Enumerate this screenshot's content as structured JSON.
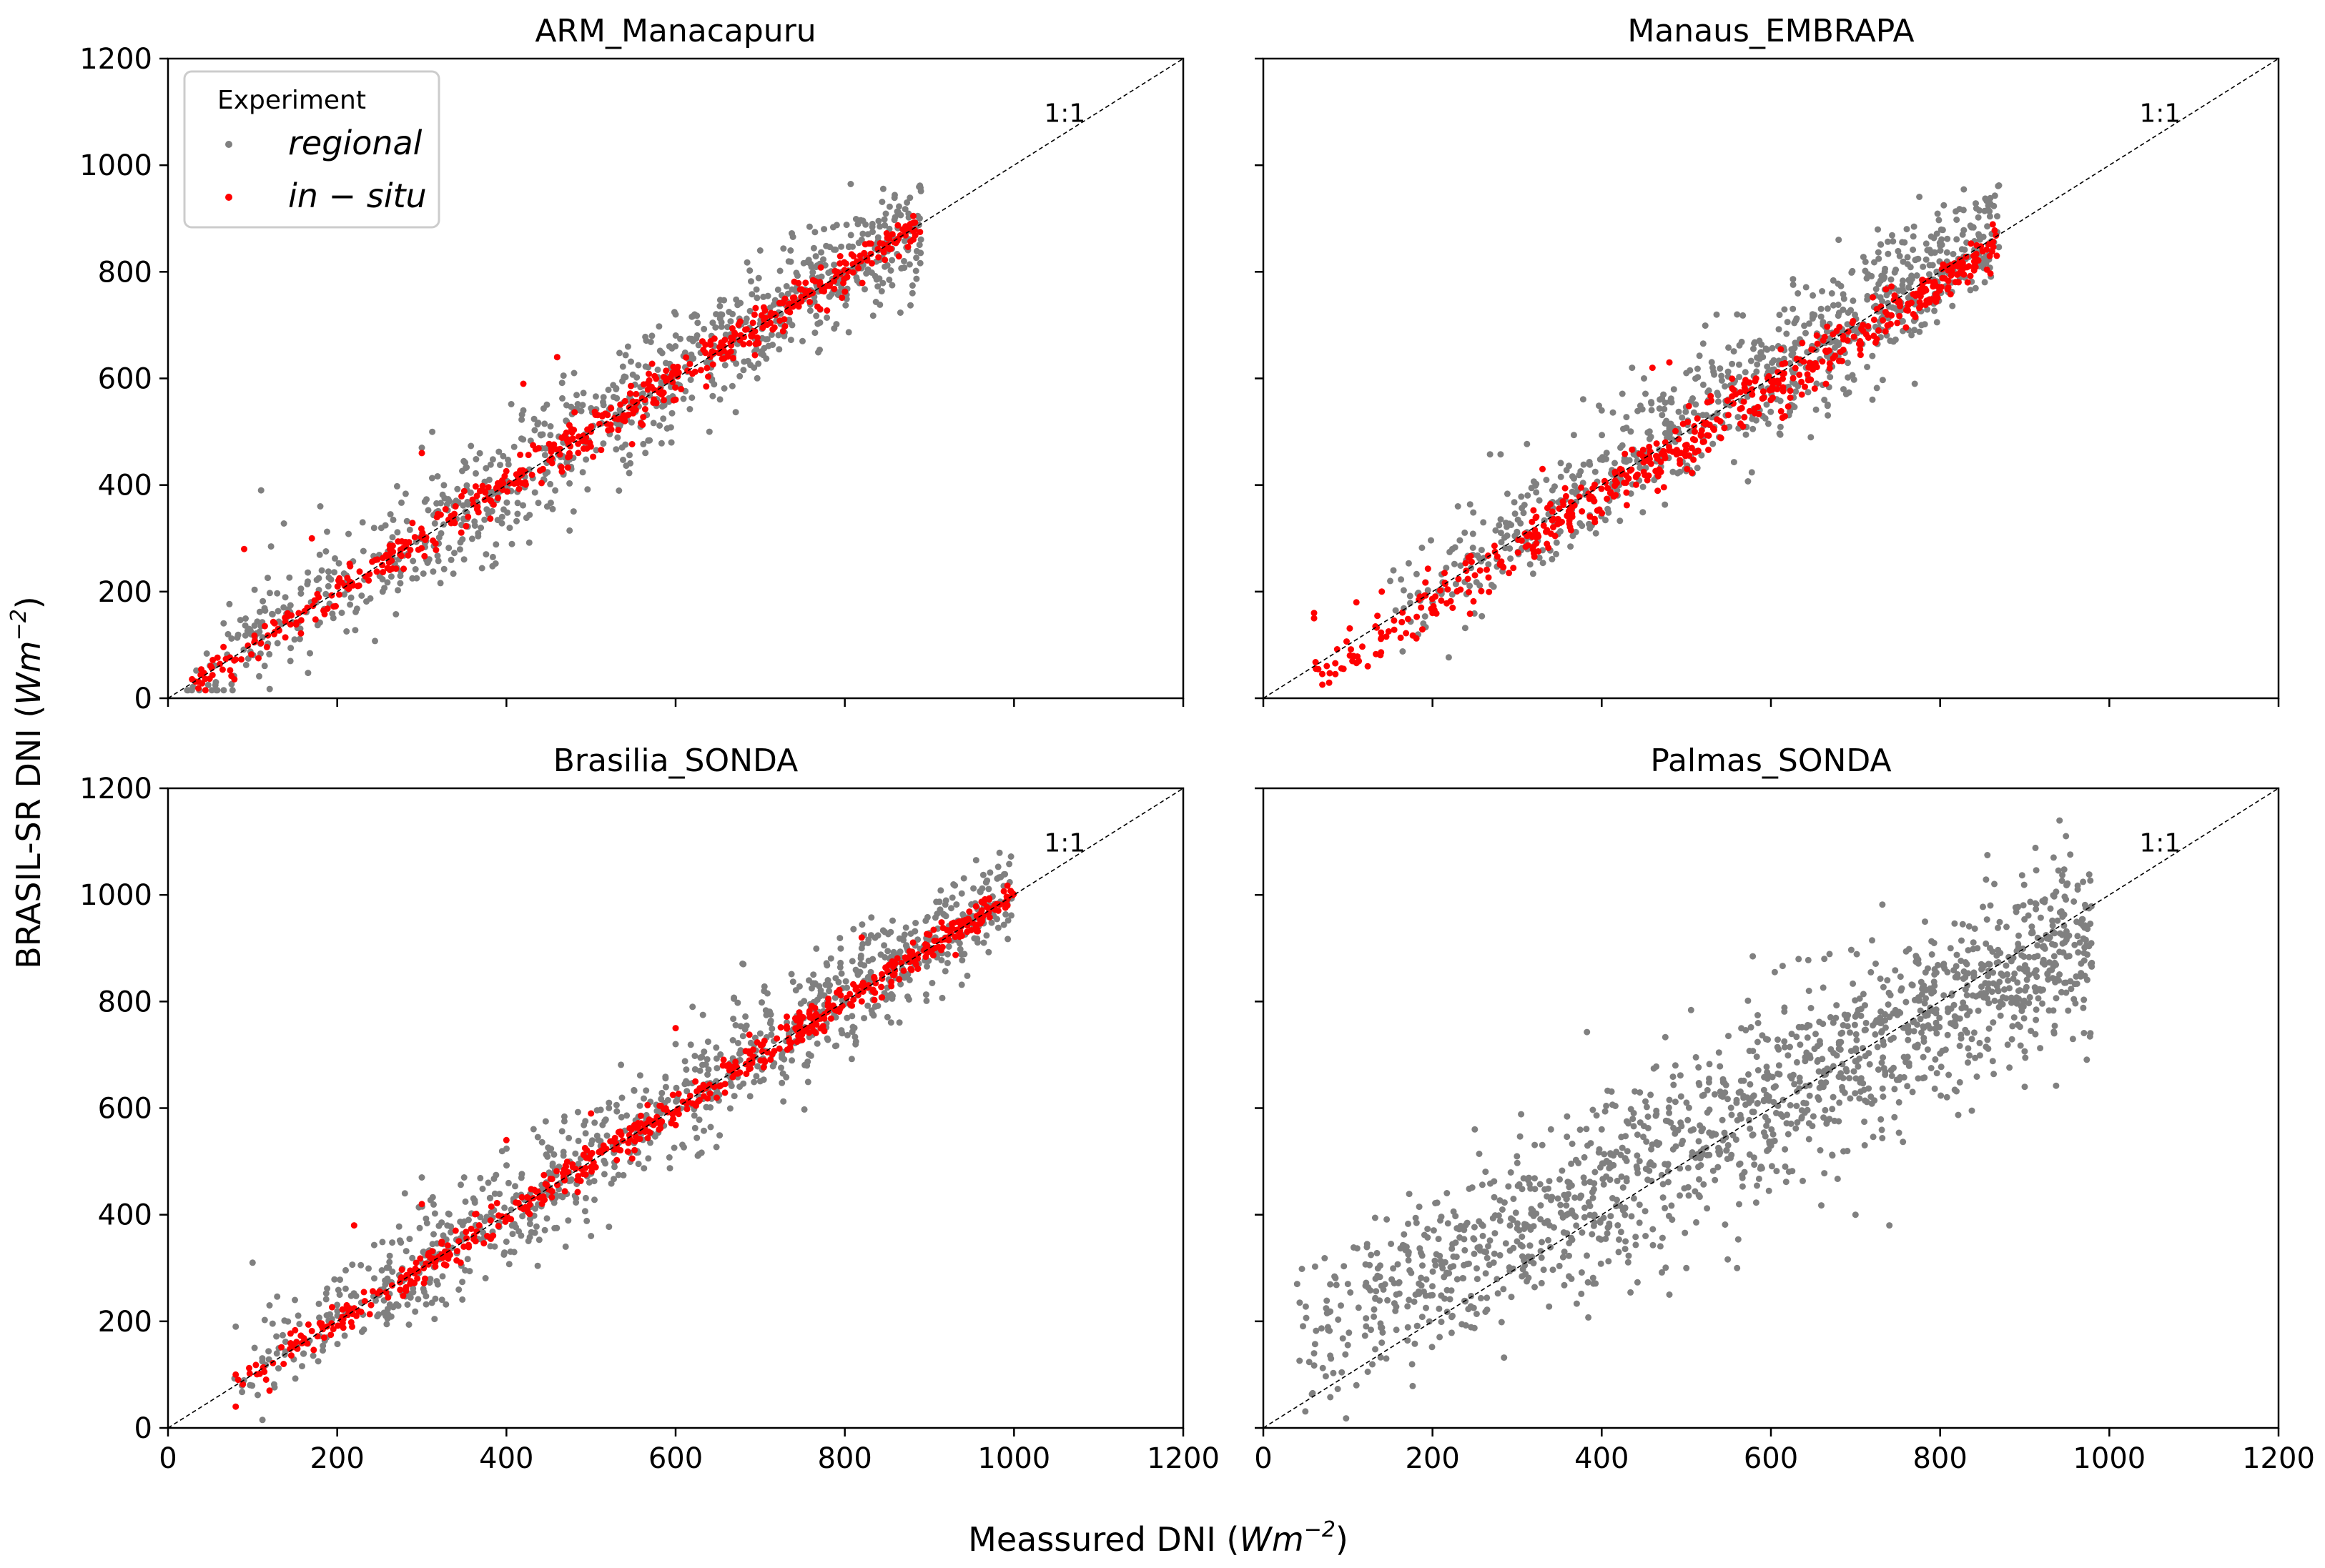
{
  "figure": {
    "xlabel": "Meassured DNI (",
    "xlabel_unit": "Wm",
    "xlabel_exp": "−2",
    "xlabel_close": ")",
    "ylabel": "BRASIL-SR DNI (",
    "ylabel_unit": "Wm",
    "ylabel_exp": "−2",
    "ylabel_close": ")",
    "legend": {
      "title": "Experiment",
      "entries": [
        {
          "label": "regional",
          "color": "#808080"
        },
        {
          "label": "in − situ",
          "color": "#ff0000"
        }
      ]
    },
    "colors": {
      "regional": "#808080",
      "insitu": "#ff0000",
      "reference_line": "#000000"
    }
  },
  "chart_data": [
    {
      "type": "scatter",
      "title": "ARM_Manacapuru",
      "annotation": "1:1",
      "xlim": [
        0,
        1200
      ],
      "ylim": [
        0,
        1200
      ],
      "xticks": [
        "0",
        "200",
        "400",
        "600",
        "800",
        "1000",
        "1200"
      ],
      "yticks": [
        "0",
        "200",
        "400",
        "600",
        "800",
        "1000",
        "1200"
      ],
      "show_xticklabels": false,
      "show_yticklabels": true,
      "series": [
        {
          "name": "regional",
          "x_range": [
            20,
            890
          ],
          "slope": 1.0,
          "intercept": 5,
          "spread": 55,
          "n": 900,
          "seed": 11,
          "extra": [
            [
              110,
              390
            ],
            [
              180,
              360
            ],
            [
              230,
              330
            ],
            [
              300,
              470
            ],
            [
              420,
              540
            ],
            [
              460,
              640
            ],
            [
              480,
              610
            ],
            [
              560,
              570
            ],
            [
              600,
              720
            ],
            [
              640,
              500
            ],
            [
              700,
              840
            ],
            [
              750,
              670
            ],
            [
              820,
              860
            ],
            [
              870,
              820
            ],
            [
              880,
              760
            ]
          ]
        },
        {
          "name": "in − situ",
          "x_range": [
            20,
            890
          ],
          "slope": 1.0,
          "intercept": 0,
          "spread": 18,
          "n": 550,
          "seed": 12,
          "extra": [
            [
              90,
              280
            ],
            [
              170,
              300
            ],
            [
              300,
              460
            ],
            [
              420,
              590
            ],
            [
              460,
              640
            ],
            [
              540,
              520
            ],
            [
              600,
              560
            ]
          ]
        }
      ]
    },
    {
      "type": "scatter",
      "title": "Manaus_EMBRAPA",
      "annotation": "1:1",
      "xlim": [
        0,
        1200
      ],
      "ylim": [
        0,
        1200
      ],
      "xticks": [
        "0",
        "200",
        "400",
        "600",
        "800",
        "1000",
        "1200"
      ],
      "yticks": [
        "0",
        "200",
        "400",
        "600",
        "800",
        "1000",
        "1200"
      ],
      "show_xticklabels": false,
      "show_yticklabels": false,
      "series": [
        {
          "name": "regional",
          "x_range": [
            150,
            870
          ],
          "slope": 1.0,
          "intercept": 15,
          "spread": 55,
          "n": 850,
          "seed": 21,
          "extra": [
            [
              150,
              220
            ],
            [
              200,
              180
            ],
            [
              230,
              360
            ],
            [
              260,
              330
            ],
            [
              400,
              540
            ],
            [
              450,
              600
            ],
            [
              500,
              610
            ],
            [
              560,
              720
            ],
            [
              680,
              860
            ],
            [
              720,
              560
            ],
            [
              770,
              590
            ]
          ]
        },
        {
          "name": "in − situ",
          "x_range": [
            60,
            870
          ],
          "slope": 1.0,
          "intercept": -20,
          "spread": 22,
          "n": 550,
          "seed": 22,
          "extra": [
            [
              60,
              160
            ],
            [
              60,
              150
            ],
            [
              110,
              180
            ],
            [
              140,
              200
            ],
            [
              200,
              160
            ],
            [
              330,
              430
            ],
            [
              460,
              620
            ],
            [
              480,
              630
            ],
            [
              510,
              500
            ]
          ]
        }
      ]
    },
    {
      "type": "scatter",
      "title": "Brasilia_SONDA",
      "annotation": "1:1",
      "xlim": [
        0,
        1200
      ],
      "ylim": [
        0,
        1200
      ],
      "xticks": [
        "0",
        "200",
        "400",
        "600",
        "800",
        "1000",
        "1200"
      ],
      "yticks": [
        "0",
        "200",
        "400",
        "600",
        "800",
        "1000",
        "1200"
      ],
      "show_xticklabels": true,
      "show_yticklabels": true,
      "series": [
        {
          "name": "regional",
          "x_range": [
            75,
            1000
          ],
          "slope": 1.0,
          "intercept": 10,
          "spread": 50,
          "n": 950,
          "seed": 31,
          "extra": [
            [
              80,
              190
            ],
            [
              100,
              310
            ],
            [
              120,
              230
            ],
            [
              150,
              240
            ],
            [
              280,
              440
            ],
            [
              300,
              470
            ],
            [
              350,
              470
            ],
            [
              470,
              340
            ],
            [
              500,
              360
            ],
            [
              600,
              720
            ],
            [
              620,
              790
            ],
            [
              680,
              870
            ],
            [
              780,
              840
            ],
            [
              820,
              900
            ]
          ]
        },
        {
          "name": "in − situ",
          "x_range": [
            75,
            1000
          ],
          "slope": 1.0,
          "intercept": 0,
          "spread": 15,
          "n": 600,
          "seed": 32,
          "extra": [
            [
              80,
              40
            ],
            [
              80,
              100
            ],
            [
              120,
              70
            ],
            [
              220,
              380
            ],
            [
              300,
              420
            ],
            [
              340,
              370
            ],
            [
              400,
              540
            ],
            [
              500,
              590
            ],
            [
              600,
              750
            ],
            [
              820,
              920
            ]
          ]
        }
      ]
    },
    {
      "type": "scatter",
      "title": "Palmas_SONDA",
      "annotation": "1:1",
      "xlim": [
        0,
        1200
      ],
      "ylim": [
        0,
        1200
      ],
      "xticks": [
        "0",
        "200",
        "400",
        "600",
        "800",
        "1000",
        "1200"
      ],
      "yticks": [
        "0",
        "200",
        "400",
        "600",
        "800",
        "1000",
        "1200"
      ],
      "show_xticklabels": true,
      "show_yticklabels": false,
      "series": [
        {
          "name": "regional",
          "x_range": [
            40,
            980
          ],
          "slope": 0.82,
          "intercept": 120,
          "spread": 80,
          "n": 1500,
          "seed": 41,
          "extra": [
            [
              40,
              270
            ],
            [
              60,
              140
            ],
            [
              80,
              130
            ],
            [
              100,
              270
            ],
            [
              110,
              80
            ],
            [
              140,
              160
            ],
            [
              180,
              250
            ],
            [
              250,
              560
            ],
            [
              300,
              350
            ],
            [
              340,
              560
            ],
            [
              400,
              560
            ],
            [
              420,
              330
            ],
            [
              480,
              250
            ],
            [
              500,
              300
            ],
            [
              560,
              300
            ],
            [
              700,
              400
            ],
            [
              740,
              380
            ],
            [
              900,
              640
            ]
          ]
        }
      ]
    }
  ]
}
